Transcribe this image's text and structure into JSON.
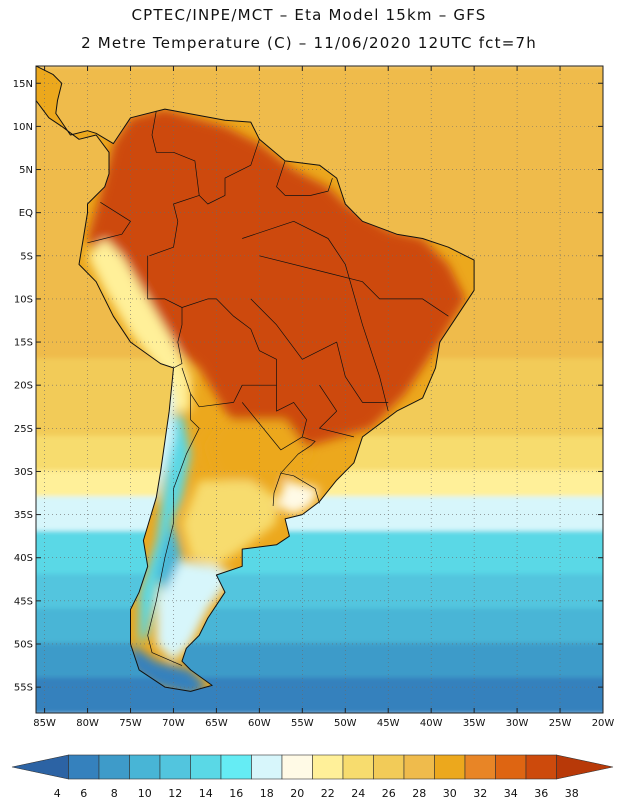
{
  "header": {
    "line1": "CPTEC/INPE/MCT –  Eta Model 15km – GFS",
    "line2": "2 Metre Temperature (C) – 11/06/2020 12UTC fct=7h"
  },
  "map": {
    "lon_range": [
      -86,
      -20
    ],
    "lat_range": [
      -58,
      17
    ],
    "lat_ticks": [
      {
        "value": 15,
        "label": "15N"
      },
      {
        "value": 10,
        "label": "10N"
      },
      {
        "value": 5,
        "label": "5N"
      },
      {
        "value": 0,
        "label": "EQ"
      },
      {
        "value": -5,
        "label": "5S"
      },
      {
        "value": -10,
        "label": "10S"
      },
      {
        "value": -15,
        "label": "15S"
      },
      {
        "value": -20,
        "label": "20S"
      },
      {
        "value": -25,
        "label": "25S"
      },
      {
        "value": -30,
        "label": "30S"
      },
      {
        "value": -35,
        "label": "35S"
      },
      {
        "value": -40,
        "label": "40S"
      },
      {
        "value": -45,
        "label": "45S"
      },
      {
        "value": -50,
        "label": "50S"
      },
      {
        "value": -55,
        "label": "55S"
      }
    ],
    "lon_ticks": [
      {
        "value": -85,
        "label": "85W"
      },
      {
        "value": -80,
        "label": "80W"
      },
      {
        "value": -75,
        "label": "75W"
      },
      {
        "value": -70,
        "label": "70W"
      },
      {
        "value": -65,
        "label": "65W"
      },
      {
        "value": -60,
        "label": "60W"
      },
      {
        "value": -55,
        "label": "55W"
      },
      {
        "value": -50,
        "label": "50W"
      },
      {
        "value": -45,
        "label": "45W"
      },
      {
        "value": -40,
        "label": "40W"
      },
      {
        "value": -35,
        "label": "35W"
      },
      {
        "value": -30,
        "label": "30W"
      },
      {
        "value": -25,
        "label": "25W"
      },
      {
        "value": -20,
        "label": "20W"
      }
    ],
    "ocean_bands": [
      {
        "lat_top": 17,
        "lat_bottom": 10,
        "temp": 27
      },
      {
        "lat_top": 10,
        "lat_bottom": -17,
        "temp": 28
      },
      {
        "lat_top": -17,
        "lat_bottom": -26,
        "temp": 26
      },
      {
        "lat_top": -26,
        "lat_bottom": -30,
        "temp": 24
      },
      {
        "lat_top": -30,
        "lat_bottom": -33,
        "temp": 22
      },
      {
        "lat_top": -33,
        "lat_bottom": -37,
        "temp": 18
      },
      {
        "lat_top": -37,
        "lat_bottom": -42,
        "temp": 14
      },
      {
        "lat_top": -42,
        "lat_bottom": -46,
        "temp": 12
      },
      {
        "lat_top": -46,
        "lat_bottom": -50,
        "temp": 10
      },
      {
        "lat_top": -50,
        "lat_bottom": -54,
        "temp": 8
      },
      {
        "lat_top": -54,
        "lat_bottom": -58,
        "temp": 6
      }
    ],
    "land_zones": [
      {
        "name": "hot-interior",
        "temp": 37,
        "coords": [
          [
            -76,
            -2
          ],
          [
            -66,
            -1
          ],
          [
            -60,
            -2
          ],
          [
            -52,
            -3
          ],
          [
            -46,
            -5
          ],
          [
            -43,
            -9
          ],
          [
            -46,
            -13
          ],
          [
            -51,
            -16
          ],
          [
            -55,
            -20
          ],
          [
            -58,
            -23
          ],
          [
            -61,
            -21
          ],
          [
            -64,
            -17
          ],
          [
            -69,
            -12
          ],
          [
            -73,
            -8
          ],
          [
            -76,
            -5
          ]
        ]
      },
      {
        "name": "northern-belt",
        "temp": 35,
        "coords": [
          [
            -75,
            11
          ],
          [
            -71,
            12
          ],
          [
            -64,
            10
          ],
          [
            -60,
            8
          ],
          [
            -56,
            5
          ],
          [
            -52,
            3
          ],
          [
            -50,
            1
          ],
          [
            -45,
            -2
          ],
          [
            -41,
            -3
          ],
          [
            -38,
            -6
          ],
          [
            -36,
            -10
          ],
          [
            -39,
            -15
          ],
          [
            -43,
            -21
          ],
          [
            -47,
            -25
          ],
          [
            -54,
            -27
          ],
          [
            -58,
            -28
          ],
          [
            -61,
            -27
          ],
          [
            -64,
            -23
          ],
          [
            -67,
            -18
          ],
          [
            -72,
            -14
          ],
          [
            -77,
            -8
          ],
          [
            -80,
            -3
          ],
          [
            -78,
            4
          ],
          [
            -77,
            8
          ]
        ]
      },
      {
        "name": "south-central",
        "temp": 29,
        "coords": [
          [
            -64,
            -24
          ],
          [
            -57,
            -24
          ],
          [
            -54,
            -28
          ],
          [
            -57,
            -31
          ],
          [
            -62,
            -32
          ],
          [
            -65,
            -30
          ],
          [
            -66,
            -27
          ]
        ]
      },
      {
        "name": "pampa",
        "temp": 24,
        "coords": [
          [
            -67,
            -31
          ],
          [
            -61,
            -31
          ],
          [
            -58,
            -33
          ],
          [
            -58,
            -36
          ],
          [
            -62,
            -39
          ],
          [
            -65,
            -41
          ],
          [
            -68,
            -40
          ],
          [
            -69,
            -36
          ]
        ]
      },
      {
        "name": "uruguay-coast",
        "temp": 20,
        "coords": [
          [
            -57,
            -31
          ],
          [
            -53,
            -32
          ],
          [
            -54,
            -34
          ],
          [
            -56,
            -35
          ],
          [
            -58,
            -34
          ]
        ]
      },
      {
        "name": "patagonia",
        "temp": 18,
        "coords": [
          [
            -71,
            -40
          ],
          [
            -65,
            -41
          ],
          [
            -63,
            -42
          ],
          [
            -66,
            -46
          ],
          [
            -68,
            -50
          ],
          [
            -70,
            -52
          ],
          [
            -72,
            -50
          ],
          [
            -72,
            -45
          ]
        ]
      },
      {
        "name": "andes-north",
        "temp": 22,
        "coords": [
          [
            -78,
            -3
          ],
          [
            -76,
            -5
          ],
          [
            -73,
            -10
          ],
          [
            -70,
            -15
          ],
          [
            -68,
            -19
          ],
          [
            -68,
            -23
          ],
          [
            -70,
            -23
          ],
          [
            -71,
            -19
          ],
          [
            -75,
            -14
          ],
          [
            -78,
            -9
          ],
          [
            -80,
            -5
          ]
        ]
      },
      {
        "name": "andes-south",
        "temp": 13,
        "coords": [
          [
            -69,
            -23
          ],
          [
            -68,
            -28
          ],
          [
            -69,
            -33
          ],
          [
            -71,
            -38
          ],
          [
            -72,
            -44
          ],
          [
            -73,
            -49
          ],
          [
            -74,
            -50
          ],
          [
            -74,
            -44
          ],
          [
            -72,
            -38
          ],
          [
            -71,
            -31
          ],
          [
            -70,
            -24
          ]
        ]
      },
      {
        "name": "andes-highland",
        "temp": 10,
        "coords": [
          [
            -70,
            -36
          ],
          [
            -69,
            -40
          ],
          [
            -71,
            -44
          ],
          [
            -72,
            -42
          ],
          [
            -71,
            -38
          ]
        ]
      },
      {
        "name": "chile-coast",
        "temp": 18,
        "coords": [
          [
            -71,
            -18
          ],
          [
            -70,
            -22
          ],
          [
            -70,
            -26
          ],
          [
            -71,
            -30
          ],
          [
            -72,
            -34
          ],
          [
            -73,
            -30
          ],
          [
            -72,
            -24
          ]
        ]
      },
      {
        "name": "tierra-del-fuego",
        "temp": 6,
        "coords": [
          [
            -75,
            -50
          ],
          [
            -72,
            -52
          ],
          [
            -68,
            -53
          ],
          [
            -66,
            -55
          ],
          [
            -68,
            -56
          ],
          [
            -72,
            -55
          ],
          [
            -75,
            -53
          ]
        ]
      }
    ],
    "continent": [
      [
        -77,
        8
      ],
      [
        -75,
        11
      ],
      [
        -71,
        12
      ],
      [
        -64,
        10.7
      ],
      [
        -61,
        10.5
      ],
      [
        -60,
        8.5
      ],
      [
        -57,
        6
      ],
      [
        -53,
        5.5
      ],
      [
        -51,
        4
      ],
      [
        -50,
        1
      ],
      [
        -48,
        -1
      ],
      [
        -44,
        -2.5
      ],
      [
        -41,
        -3
      ],
      [
        -38,
        -4
      ],
      [
        -35,
        -5.5
      ],
      [
        -35,
        -9
      ],
      [
        -37,
        -12
      ],
      [
        -39,
        -15
      ],
      [
        -39.5,
        -18
      ],
      [
        -41,
        -21.5
      ],
      [
        -44,
        -23
      ],
      [
        -48,
        -26
      ],
      [
        -49,
        -29
      ],
      [
        -51,
        -31
      ],
      [
        -53,
        -33.5
      ],
      [
        -55,
        -35
      ],
      [
        -57,
        -35.5
      ],
      [
        -56.5,
        -37.5
      ],
      [
        -58,
        -38.5
      ],
      [
        -62,
        -39
      ],
      [
        -62,
        -41
      ],
      [
        -65,
        -42
      ],
      [
        -64,
        -44
      ],
      [
        -66,
        -47
      ],
      [
        -67,
        -49
      ],
      [
        -68.5,
        -50.5
      ],
      [
        -69,
        -52
      ],
      [
        -68,
        -53
      ],
      [
        -65.5,
        -54.8
      ],
      [
        -68,
        -55.5
      ],
      [
        -71,
        -55
      ],
      [
        -74,
        -53
      ],
      [
        -75,
        -50
      ],
      [
        -75,
        -46
      ],
      [
        -74,
        -44
      ],
      [
        -73,
        -41
      ],
      [
        -73.5,
        -38
      ],
      [
        -72,
        -33
      ],
      [
        -71.5,
        -30
      ],
      [
        -70.5,
        -23
      ],
      [
        -70,
        -18
      ],
      [
        -71.5,
        -17.5
      ],
      [
        -75,
        -15
      ],
      [
        -77,
        -12
      ],
      [
        -79,
        -8
      ],
      [
        -81,
        -6
      ],
      [
        -80.5,
        -3
      ],
      [
        -80,
        0
      ],
      [
        -80,
        1
      ],
      [
        -79,
        2
      ],
      [
        -78,
        3
      ],
      [
        -77.5,
        4.5
      ],
      [
        -77.5,
        7
      ],
      [
        -79,
        9
      ],
      [
        -81,
        8.5
      ],
      [
        -83,
        10
      ],
      [
        -84.5,
        11
      ],
      [
        -86,
        13
      ],
      [
        -86,
        17
      ],
      [
        -84,
        16
      ],
      [
        -83,
        15
      ],
      [
        -83.5,
        13
      ],
      [
        -83.7,
        11.5
      ],
      [
        -82,
        9
      ],
      [
        -80,
        9.5
      ],
      [
        -79,
        9.2
      ]
    ],
    "borders": [
      [
        [
          -72,
          11.8
        ],
        [
          -72.5,
          9
        ],
        [
          -72,
          7
        ],
        [
          -70,
          7
        ],
        [
          -67.5,
          6
        ],
        [
          -67,
          2
        ],
        [
          -70,
          1
        ],
        [
          -69.5,
          -1
        ],
        [
          -70,
          -4
        ],
        [
          -72.8,
          -5
        ]
      ],
      [
        [
          -60,
          8.5
        ],
        [
          -61,
          5.5
        ],
        [
          -64,
          4
        ],
        [
          -64,
          2
        ],
        [
          -66,
          1
        ],
        [
          -67,
          2
        ]
      ],
      [
        [
          -57,
          6
        ],
        [
          -58,
          3
        ],
        [
          -57,
          2
        ],
        [
          -54,
          2
        ],
        [
          -52,
          2.5
        ],
        [
          -51.5,
          4
        ]
      ],
      [
        [
          -80,
          -3.5
        ],
        [
          -78,
          -3
        ],
        [
          -76,
          -2.5
        ],
        [
          -75,
          -1
        ],
        [
          -78.5,
          1.2
        ]
      ],
      [
        [
          -73,
          -5
        ],
        [
          -73,
          -10
        ],
        [
          -71,
          -10
        ],
        [
          -69,
          -11
        ],
        [
          -69,
          -13
        ],
        [
          -69.5,
          -15
        ],
        [
          -69,
          -17.5
        ],
        [
          -70,
          -18
        ]
      ],
      [
        [
          -69,
          -11
        ],
        [
          -66,
          -10
        ],
        [
          -65,
          -10
        ],
        [
          -63,
          -12
        ],
        [
          -61,
          -13.5
        ],
        [
          -60,
          -16
        ],
        [
          -58,
          -17
        ],
        [
          -58,
          -20
        ],
        [
          -62,
          -20
        ],
        [
          -63,
          -22
        ],
        [
          -67,
          -22.5
        ],
        [
          -68,
          -21
        ],
        [
          -69,
          -18
        ]
      ],
      [
        [
          -68,
          -21
        ],
        [
          -68,
          -24
        ],
        [
          -67,
          -25
        ],
        [
          -68.5,
          -28
        ],
        [
          -70,
          -32
        ],
        [
          -70,
          -36
        ],
        [
          -71,
          -40
        ],
        [
          -72,
          -45
        ],
        [
          -73,
          -49
        ],
        [
          -72.5,
          -51
        ],
        [
          -69,
          -52.5
        ]
      ],
      [
        [
          -58,
          -20
        ],
        [
          -58,
          -23
        ],
        [
          -56,
          -22
        ],
        [
          -54.5,
          -24
        ],
        [
          -55,
          -26
        ],
        [
          -57.5,
          -27.5
        ],
        [
          -62,
          -22
        ]
      ],
      [
        [
          -55,
          -26
        ],
        [
          -53.5,
          -26.5
        ],
        [
          -54,
          -27
        ],
        [
          -55.5,
          -28
        ],
        [
          -57.5,
          -30.2
        ],
        [
          -56,
          -30.5
        ],
        [
          -53.5,
          -32
        ],
        [
          -53,
          -33.7
        ]
      ],
      [
        [
          -57.5,
          -30.2
        ],
        [
          -58.3,
          -32.5
        ],
        [
          -58.4,
          -34
        ]
      ],
      [
        [
          -60,
          -5
        ],
        [
          -52,
          -7
        ],
        [
          -48,
          -8
        ],
        [
          -46,
          -10
        ],
        [
          -41,
          -10
        ],
        [
          -38,
          -12
        ]
      ],
      [
        [
          -61,
          -10
        ],
        [
          -58,
          -13
        ],
        [
          -55,
          -17
        ],
        [
          -51,
          -15
        ],
        [
          -50,
          -19
        ],
        [
          -48,
          -22
        ],
        [
          -45,
          -22
        ]
      ],
      [
        [
          -62,
          -3
        ],
        [
          -56,
          -1
        ],
        [
          -52,
          -3
        ],
        [
          -50,
          -6
        ],
        [
          -48,
          -13
        ],
        [
          -46,
          -19
        ],
        [
          -45,
          -23
        ]
      ],
      [
        [
          -53,
          -20
        ],
        [
          -51,
          -23
        ],
        [
          -53,
          -25
        ],
        [
          -49,
          -26
        ]
      ]
    ],
    "colorbar": {
      "colors": [
        "#2c63a4",
        "#3581bd",
        "#3e9bc9",
        "#48b5d6",
        "#52c5de",
        "#5ad8e6",
        "#65ecf4",
        "#d7f6fb",
        "#fffae6",
        "#fff099",
        "#f7dc6e",
        "#f2cb58",
        "#efbb4c",
        "#eca81d",
        "#e88526",
        "#de6512",
        "#cd4a0c",
        "#b83908"
      ],
      "labels": [
        "4",
        "6",
        "8",
        "10",
        "12",
        "14",
        "16",
        "18",
        "20",
        "22",
        "24",
        "26",
        "28",
        "30",
        "32",
        "34",
        "36",
        "38"
      ],
      "min": 4,
      "max": 38
    }
  }
}
